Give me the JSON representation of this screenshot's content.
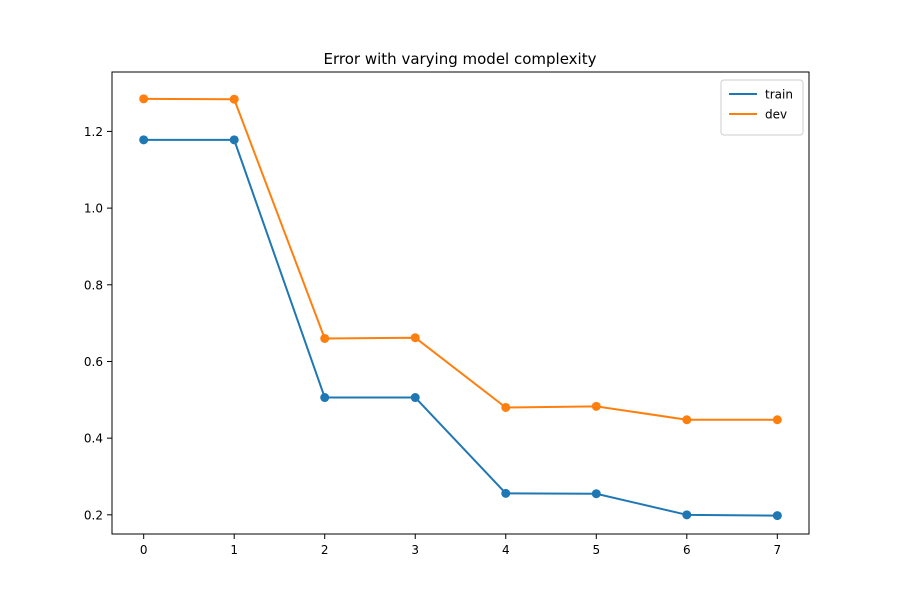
{
  "chart_data": {
    "type": "line",
    "title": "Error with varying model complexity",
    "xlabel": "",
    "ylabel": "",
    "x": [
      0,
      1,
      2,
      3,
      4,
      5,
      6,
      7
    ],
    "xlim": [
      -0.35,
      7.35
    ],
    "ylim": [
      0.15,
      1.355
    ],
    "xticks": [
      0,
      1,
      2,
      3,
      4,
      5,
      6,
      7
    ],
    "yticks": [
      0.2,
      0.4,
      0.6,
      0.8,
      1.0,
      1.2
    ],
    "ytick_labels": [
      "0.2",
      "0.4",
      "0.6",
      "0.8",
      "1.0",
      "1.2"
    ],
    "grid": false,
    "legend_position": "top-right",
    "markers": true,
    "series": [
      {
        "name": "train",
        "color": "#1f77b4",
        "values": [
          1.178,
          1.178,
          0.506,
          0.506,
          0.256,
          0.255,
          0.2,
          0.198
        ]
      },
      {
        "name": "dev",
        "color": "#ff7f0e",
        "values": [
          1.285,
          1.284,
          0.66,
          0.662,
          0.48,
          0.483,
          0.448,
          0.448
        ]
      }
    ]
  }
}
